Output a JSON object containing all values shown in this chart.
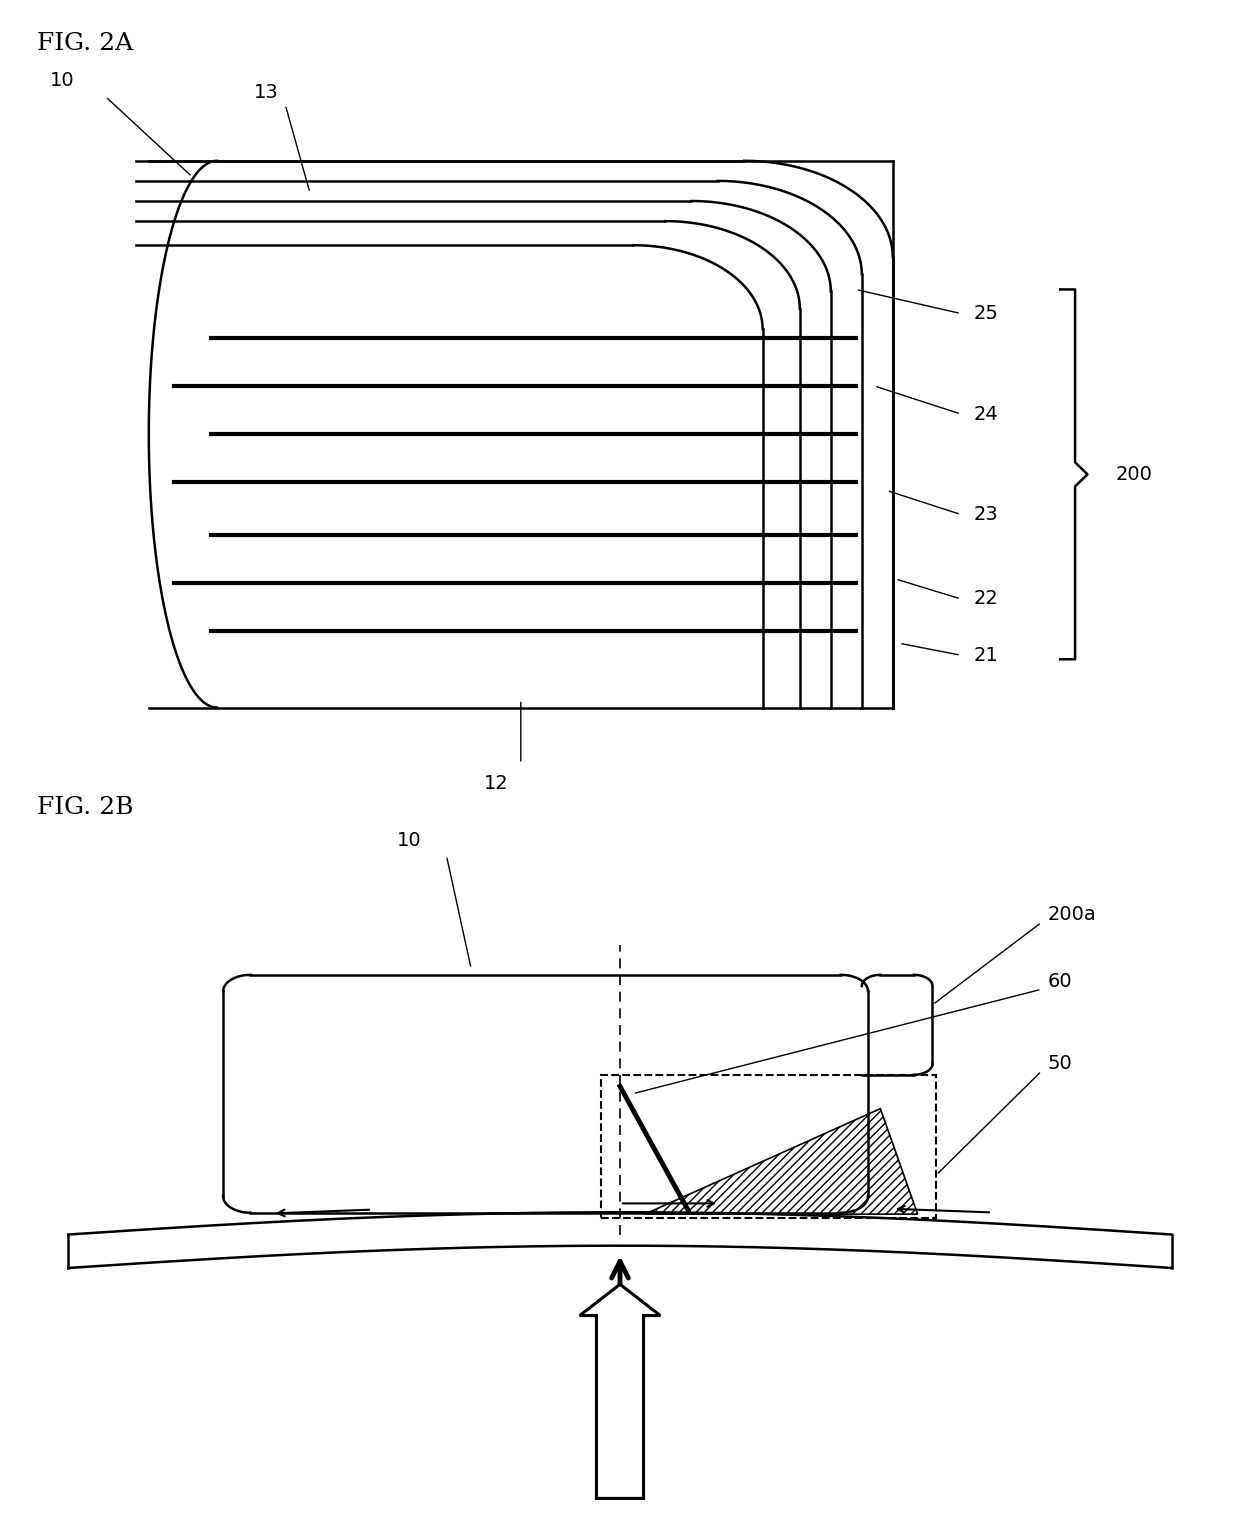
{
  "fig_title_A": "FIG. 2A",
  "fig_title_B": "FIG. 2B",
  "bg_color": "#ffffff",
  "line_color": "#000000",
  "lw_thin": 1.2,
  "lw_med": 1.8,
  "lw_thick": 3.0,
  "font_size_title": 18,
  "font_size_label": 14
}
